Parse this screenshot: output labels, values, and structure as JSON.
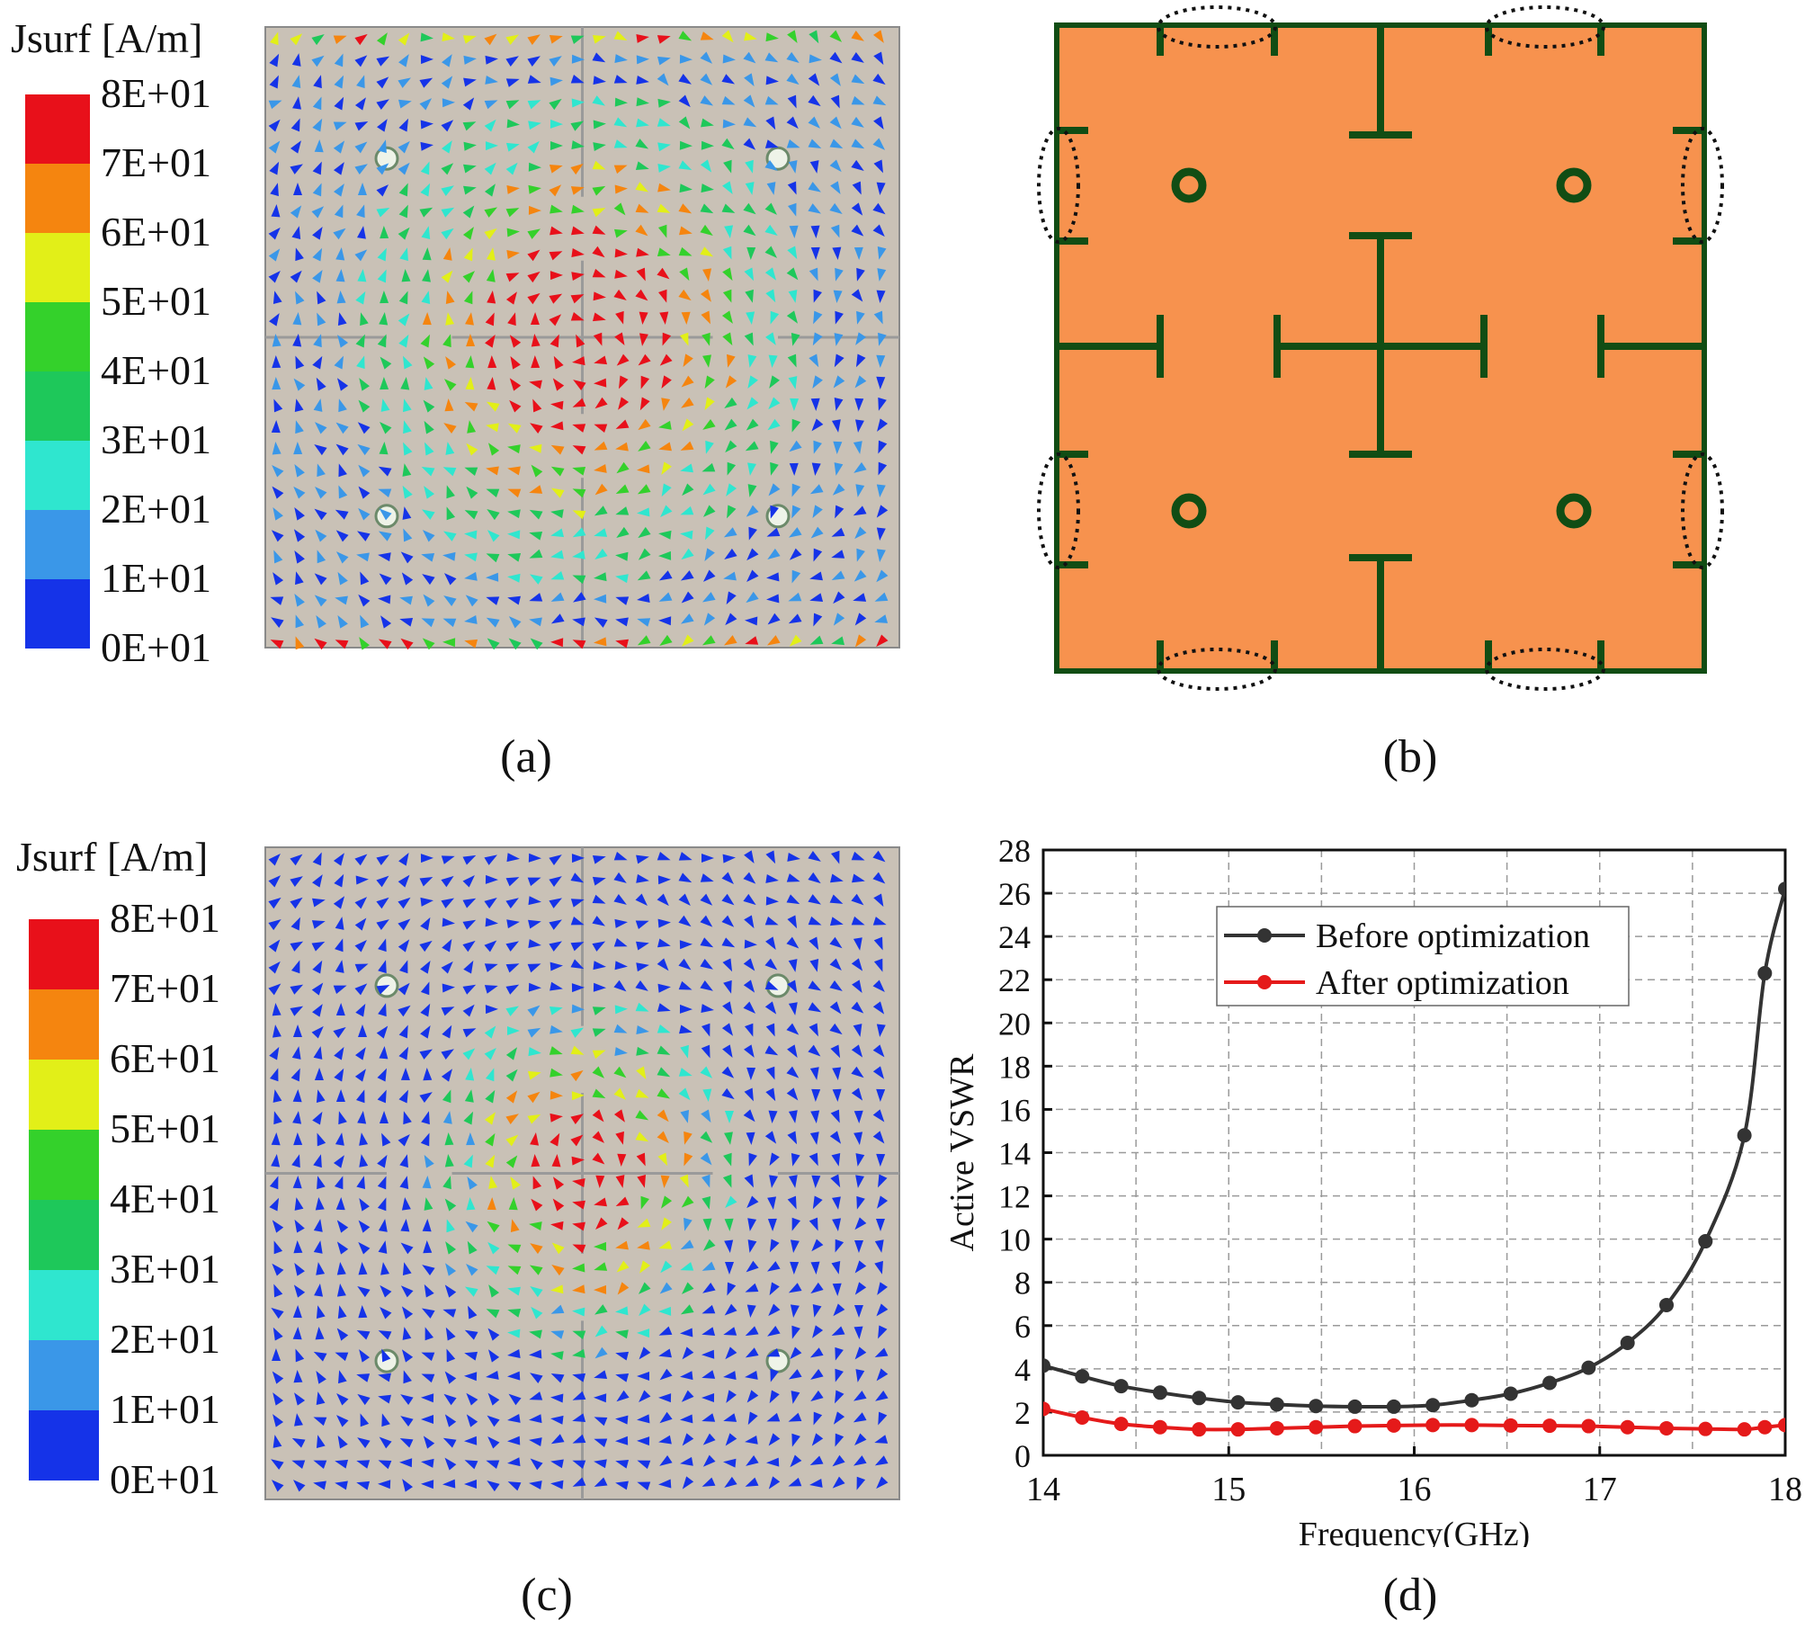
{
  "colorbar": {
    "title": "Jsurf [A/m]",
    "ticks": [
      "8E+01",
      "7E+01",
      "6E+01",
      "5E+01",
      "4E+01",
      "3E+01",
      "2E+01",
      "1E+01",
      "0E+01"
    ],
    "colors": [
      "#e8101a",
      "#f5850f",
      "#e2ef18",
      "#34d12b",
      "#1ec85a",
      "#2fe6cf",
      "#3a97e8",
      "#1533e8"
    ]
  },
  "captions": {
    "a": "(a)",
    "b": "(b)",
    "c": "(c)",
    "d": "(d)"
  },
  "colors": {
    "substrate": "#c9c1b6",
    "patch_fill": "#f7924e",
    "patch_stroke": "#114d14",
    "before": "#333333",
    "after": "#e51a1a"
  },
  "chart_data": {
    "type": "line",
    "xlabel": "Frequency(GHz)",
    "ylabel": "Active VSWR",
    "xlim": [
      14,
      18
    ],
    "ylim": [
      0,
      28
    ],
    "xticks": [
      "14",
      "15",
      "16",
      "17",
      "18"
    ],
    "yticks": [
      "0",
      "2",
      "4",
      "6",
      "8",
      "10",
      "12",
      "14",
      "16",
      "18",
      "20",
      "22",
      "24",
      "26",
      "28"
    ],
    "grid": true,
    "legend_position": "top-right",
    "series": [
      {
        "name": "Before optimization",
        "x": [
          14.0,
          14.21,
          14.42,
          14.63,
          14.84,
          15.05,
          15.26,
          15.47,
          15.68,
          15.89,
          16.1,
          16.31,
          16.52,
          16.73,
          16.94,
          17.15,
          17.36,
          17.57,
          17.78,
          17.89,
          18.0
        ],
        "y": [
          4.15,
          3.65,
          3.2,
          2.9,
          2.65,
          2.45,
          2.35,
          2.28,
          2.25,
          2.25,
          2.32,
          2.55,
          2.85,
          3.35,
          4.05,
          5.2,
          6.95,
          9.9,
          14.8,
          22.3,
          26.2
        ]
      },
      {
        "name": "After optimization",
        "x": [
          14.0,
          14.21,
          14.42,
          14.63,
          14.84,
          15.05,
          15.26,
          15.47,
          15.68,
          15.89,
          16.1,
          16.31,
          16.52,
          16.73,
          16.94,
          17.15,
          17.36,
          17.57,
          17.78,
          17.89,
          18.0
        ],
        "y": [
          2.15,
          1.75,
          1.45,
          1.3,
          1.2,
          1.2,
          1.25,
          1.3,
          1.35,
          1.38,
          1.4,
          1.4,
          1.38,
          1.37,
          1.35,
          1.3,
          1.25,
          1.22,
          1.2,
          1.3,
          1.4
        ]
      }
    ]
  }
}
